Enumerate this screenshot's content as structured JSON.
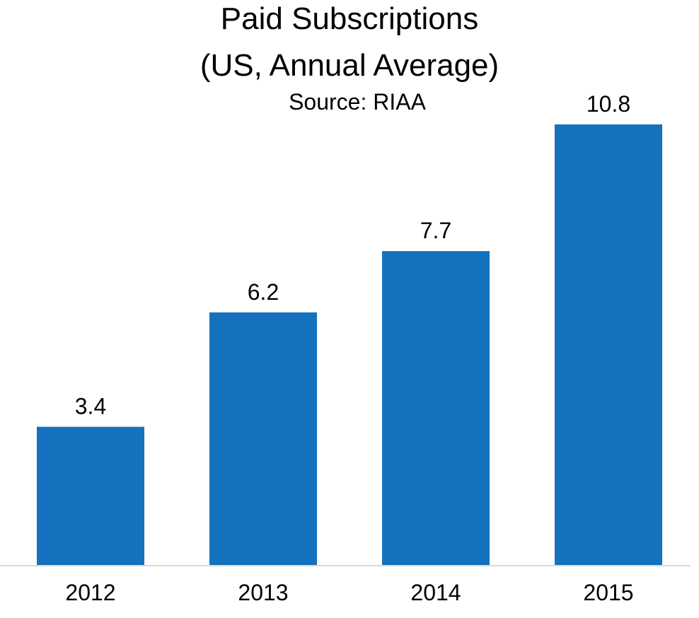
{
  "chart_data": {
    "type": "bar",
    "title_lines": [
      "Paid Subscriptions",
      "(US, Annual Average)"
    ],
    "subtitle": "Source: RIAA",
    "categories": [
      "2012",
      "2013",
      "2014",
      "2015"
    ],
    "values": [
      3.4,
      6.2,
      7.7,
      10.8
    ],
    "data_labels": [
      "3.4",
      "6.2",
      "7.7",
      "10.8"
    ],
    "ylim": [
      0,
      10.8
    ],
    "xlabel": "",
    "ylabel": "",
    "grid": false,
    "legend": "none",
    "colors": {
      "bar": "#1472BF",
      "axis": "#D9D9D9",
      "text": "#000000"
    }
  }
}
